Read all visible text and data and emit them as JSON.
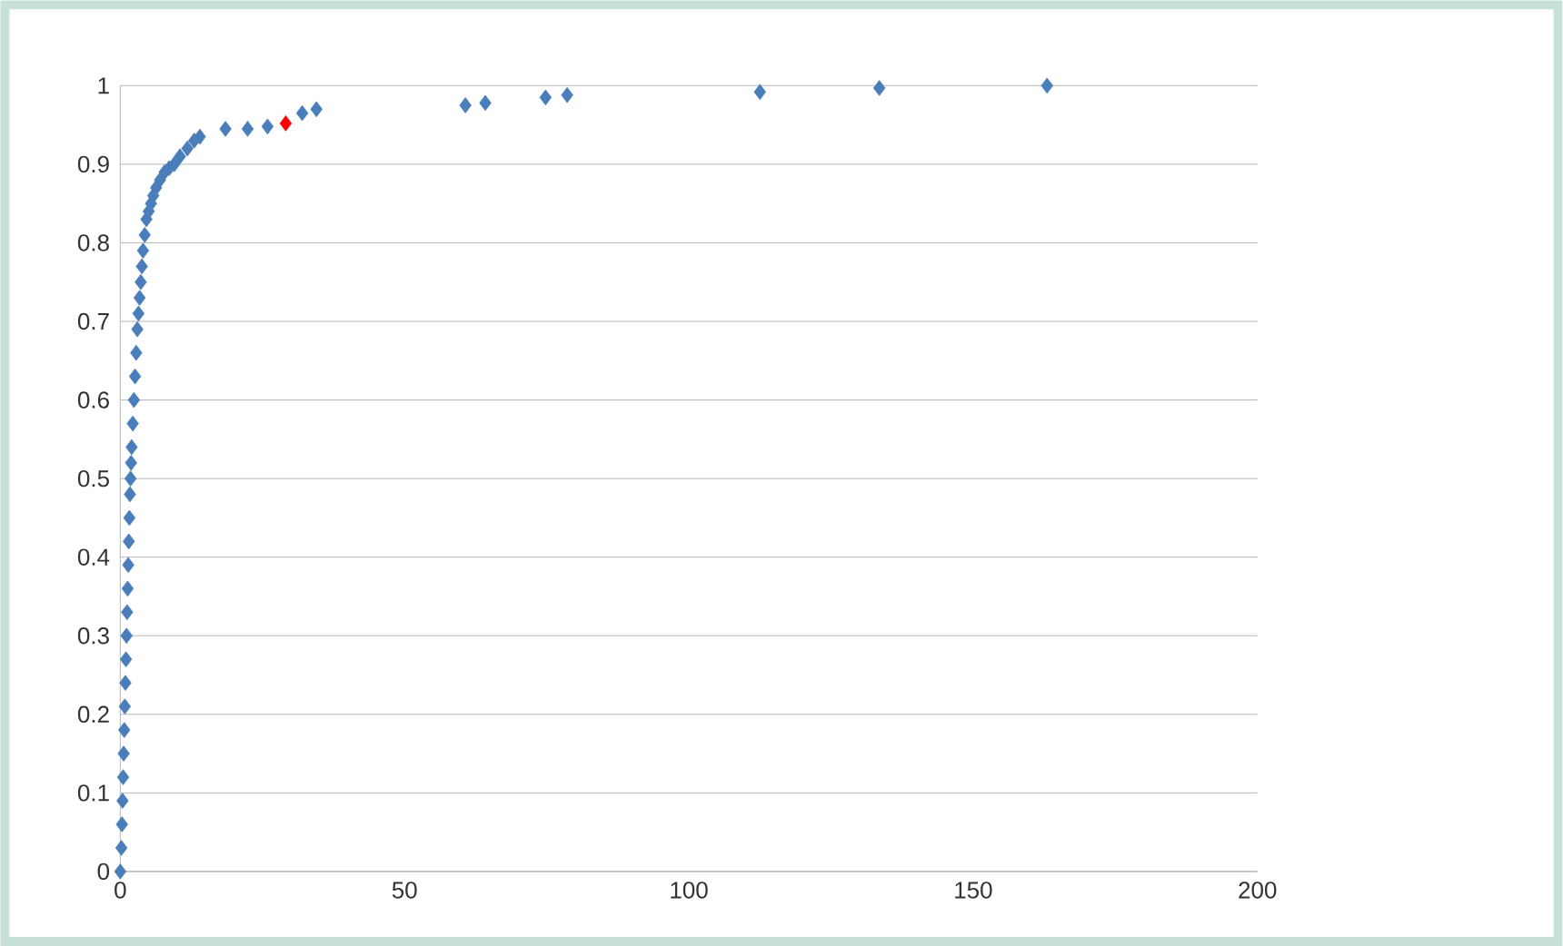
{
  "chart_data": {
    "type": "scatter",
    "marker": "diamond",
    "grid": "y",
    "xlim": [
      0,
      200
    ],
    "ylim": [
      0,
      1
    ],
    "xticks": [
      0,
      50,
      100,
      150,
      200
    ],
    "yticks": [
      0,
      {
        "value": 0.1,
        "label": "0.1"
      },
      {
        "value": 0.2,
        "label": "0.2"
      },
      {
        "value": 0.3,
        "label": "0.3"
      },
      {
        "value": 0.4,
        "label": "0.4"
      },
      {
        "value": 0.5,
        "label": "0.5"
      },
      {
        "value": 0.6,
        "label": "0.6"
      },
      {
        "value": 0.7,
        "label": "0.7"
      },
      {
        "value": 0.8,
        "label": "0.8"
      },
      {
        "value": 0.9,
        "label": "0.9"
      },
      1
    ],
    "series": [
      {
        "color": "#4a7ebb",
        "x": [
          0,
          0.2,
          0.3,
          0.4,
          0.5,
          0.6,
          0.7,
          0.8,
          0.9,
          1.0,
          1.1,
          1.2,
          1.3,
          1.4,
          1.5,
          1.6,
          1.7,
          1.8,
          1.9,
          2.0,
          2.2,
          2.4,
          2.6,
          2.8,
          3.0,
          3.2,
          3.4,
          3.6,
          3.8,
          4.0,
          4.3,
          4.6,
          5.0,
          5.4,
          5.8,
          6.3,
          7.0,
          7.8,
          8.6,
          9.5,
          10.5,
          11.8,
          13,
          14,
          18.5,
          22.4,
          25.9,
          32,
          34.5,
          60.7,
          64.2,
          74.8,
          78.6,
          112.5,
          133.5,
          163
        ],
        "values": [
          0,
          0.03,
          0.06,
          0.09,
          0.12,
          0.15,
          0.18,
          0.21,
          0.24,
          0.27,
          0.3,
          0.33,
          0.36,
          0.39,
          0.42,
          0.45,
          0.48,
          0.5,
          0.52,
          0.54,
          0.57,
          0.6,
          0.63,
          0.66,
          0.69,
          0.71,
          0.73,
          0.75,
          0.77,
          0.79,
          0.81,
          0.83,
          0.84,
          0.85,
          0.86,
          0.87,
          0.88,
          0.89,
          0.895,
          0.9,
          0.91,
          0.92,
          0.93,
          0.935,
          0.945,
          0.945,
          0.948,
          0.965,
          0.97,
          0.975,
          0.978,
          0.985,
          0.988,
          0.992,
          0.997,
          1.0
        ]
      },
      {
        "color": "#ff0000",
        "x": [
          29.1
        ],
        "values": [
          0.952
        ]
      }
    ]
  }
}
